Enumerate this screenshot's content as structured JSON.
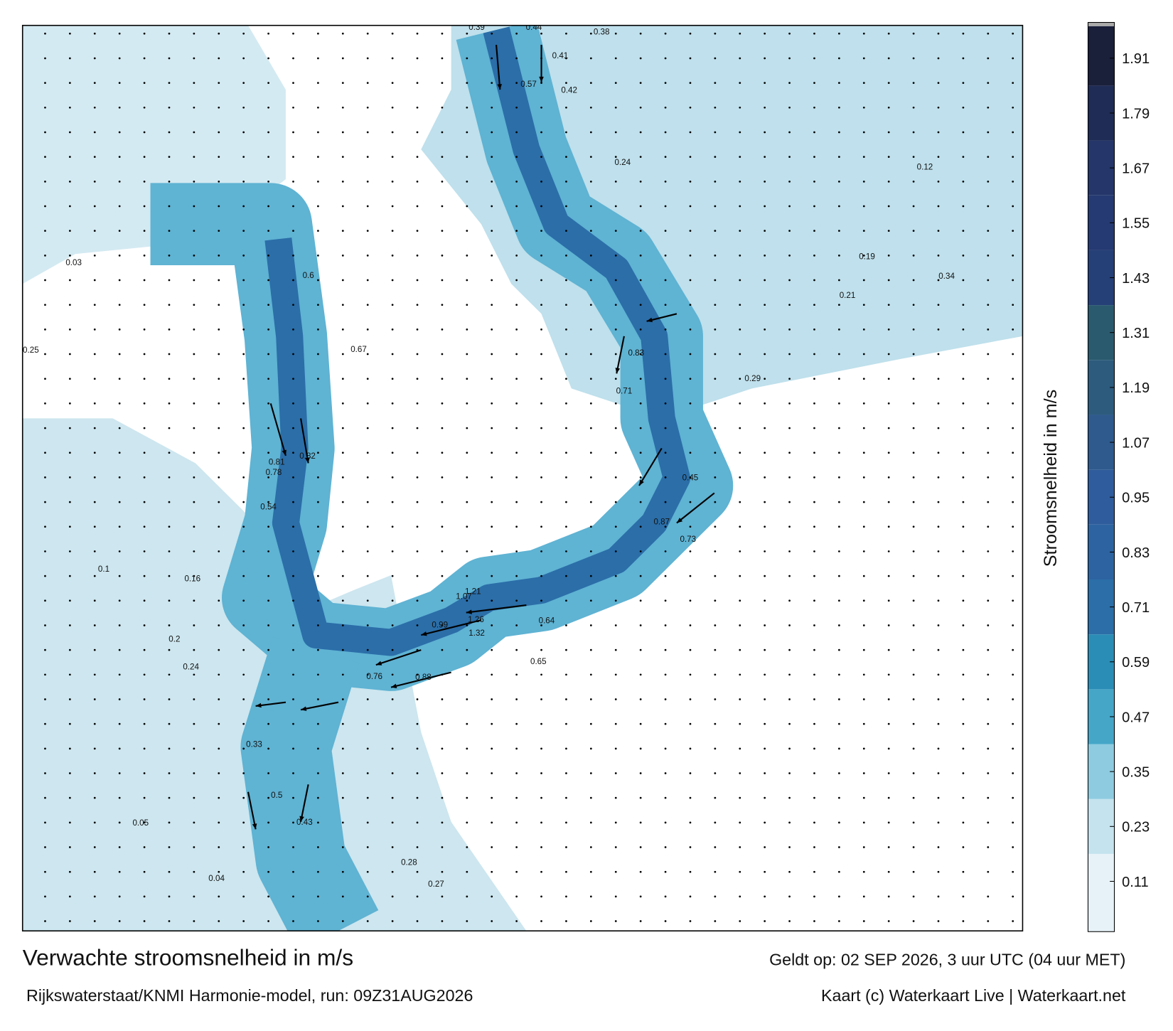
{
  "header": {
    "title": "Verwachte stroomsnelheid in m/s",
    "subtitle": "Rijkswaterstaat/KNMI Harmonie-model, run: 09Z31AUG2026",
    "valid": "Geldt op: 02 SEP 2026, 3 uur UTC (04 uur MET)",
    "credit": "Kaart (c) Waterkaart Live | Waterkaart.net"
  },
  "colorbar": {
    "label": "Stroomsnelheid in m/s",
    "range": [
      0,
      1.98
    ],
    "ticks": [
      0.11,
      0.23,
      0.35,
      0.47,
      0.59,
      0.71,
      0.83,
      0.95,
      1.07,
      1.19,
      1.31,
      1.43,
      1.55,
      1.67,
      1.79,
      1.91
    ],
    "colors": [
      "#e6f2f7",
      "#c4e3ee",
      "#8ecbe0",
      "#45a6c8",
      "#2a8db5",
      "#2b6ea8",
      "#2d63a1",
      "#2f5c9c",
      "#2e5a8e",
      "#2c5b7e",
      "#2a5a6e",
      "#253f77",
      "#253a72",
      "#24366a",
      "#1f2c55",
      "#1a1f3a"
    ]
  },
  "map_labels": [
    0.39,
    0.44,
    0.38,
    0.41,
    0.57,
    0.42,
    0.6,
    0.82,
    0.81,
    0.78,
    0.54,
    0.67,
    1.21,
    1.07,
    1.26,
    1.32,
    0.99,
    0.88,
    0.76,
    0.65,
    0.64,
    0.83,
    0.71,
    0.87,
    0.73,
    0.45,
    0.5,
    0.43,
    0.33,
    0.28,
    0.27,
    0.12,
    0.21,
    0.34,
    0.19,
    0.05,
    0.04,
    0.2,
    0.24,
    0.16,
    0.1,
    0.03,
    0.25,
    0.29,
    0.24
  ]
}
